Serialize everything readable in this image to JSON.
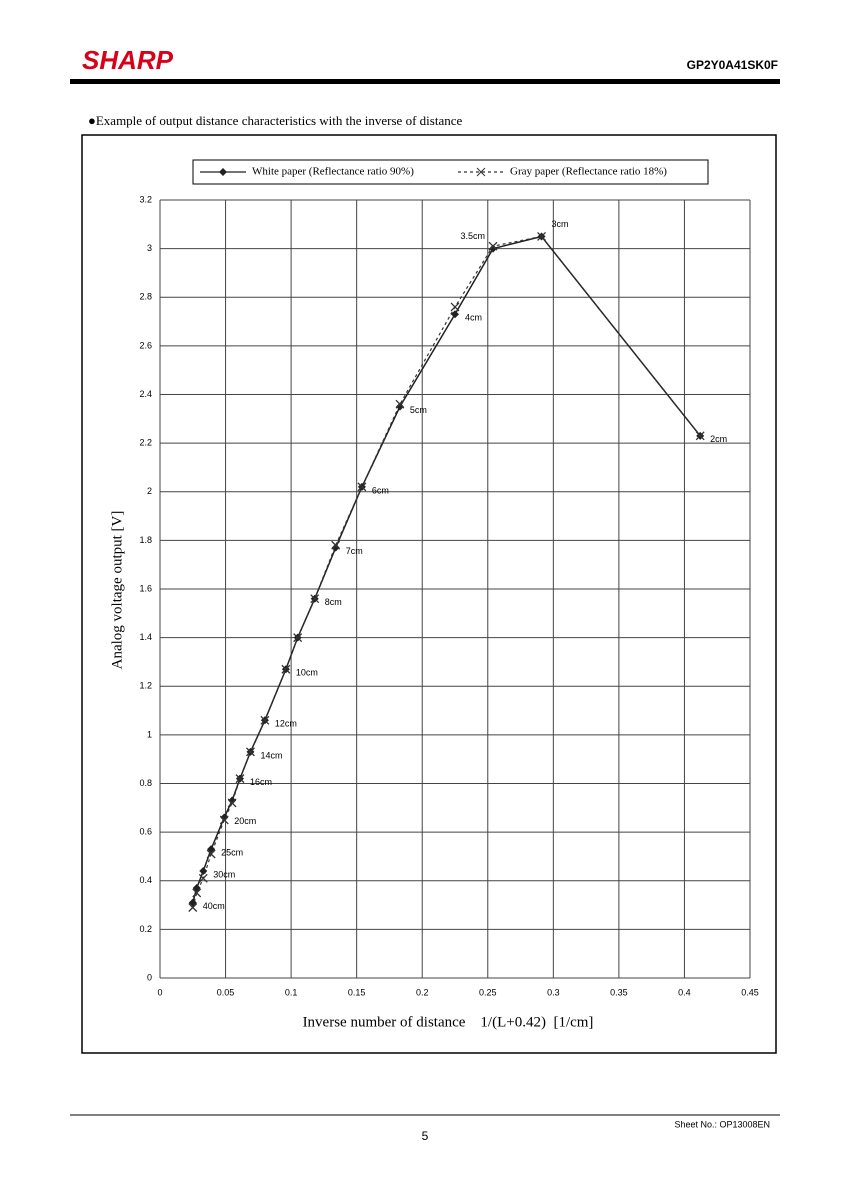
{
  "header": {
    "logo": "SHARP",
    "model": "GP2Y0A41SK0F"
  },
  "caption": "●Example of output distance characteristics with the inverse of distance",
  "chart_data": {
    "type": "line",
    "xlabel": "Inverse number of distance    1/(L+0.42)  [1/cm]",
    "ylabel": "Analog voltage output [V]",
    "x": [
      0.025,
      0.028,
      0.033,
      0.039,
      0.049,
      0.055,
      0.061,
      0.069,
      0.08,
      0.096,
      0.105,
      0.118,
      0.134,
      0.154,
      0.183,
      0.225,
      0.254,
      0.291,
      0.412
    ],
    "point_labels": [
      "40cm",
      null,
      "30cm",
      "25cm",
      "20cm",
      null,
      "16cm",
      "14cm",
      "12cm",
      "10cm",
      null,
      "8cm",
      "7cm",
      "6cm",
      "5cm",
      "4cm",
      "3.5cm",
      "3cm",
      "2cm"
    ],
    "series": [
      {
        "name": "White paper (Reflectance ratio 90%)",
        "color": "#222222",
        "marker": "diamond",
        "dashed": false,
        "values": [
          0.31,
          0.37,
          0.44,
          0.53,
          0.66,
          0.73,
          0.82,
          0.93,
          1.06,
          1.27,
          1.4,
          1.56,
          1.77,
          2.02,
          2.35,
          2.73,
          3.0,
          3.05,
          2.23
        ]
      },
      {
        "name": "Gray paper (Reflectance ratio 18%)",
        "color": "#333333",
        "marker": "x",
        "dashed": true,
        "values": [
          0.29,
          0.35,
          0.41,
          0.51,
          0.65,
          0.72,
          0.82,
          0.93,
          1.06,
          1.27,
          1.4,
          1.56,
          1.78,
          2.02,
          2.36,
          2.76,
          3.01,
          3.05,
          2.23
        ]
      }
    ],
    "xlim": [
      0,
      0.45
    ],
    "xticks": [
      0,
      0.05,
      0.1,
      0.15,
      0.2,
      0.25,
      0.3,
      0.35,
      0.4,
      0.45
    ],
    "ylim": [
      0,
      3.2
    ],
    "yticks": [
      0,
      0.2,
      0.4,
      0.6,
      0.8,
      1,
      1.2,
      1.4,
      1.6,
      1.8,
      2,
      2.2,
      2.4,
      2.6,
      2.8,
      3,
      3.2
    ],
    "grid": true
  },
  "footer": {
    "sheet": "Sheet No.: OP13008EN",
    "page": "5"
  }
}
